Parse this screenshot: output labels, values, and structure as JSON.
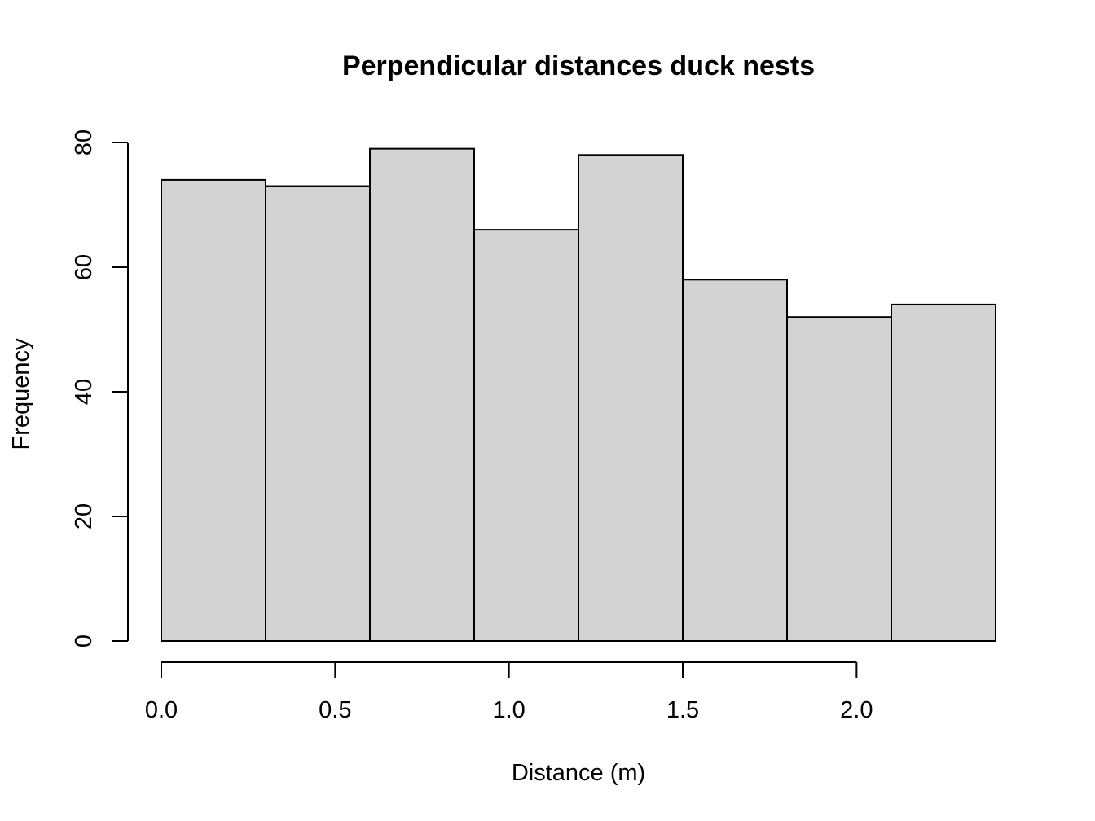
{
  "chart_data": {
    "type": "bar",
    "title": "Perpendicular distances duck nests",
    "xlabel": "Distance (m)",
    "ylabel": "Frequency",
    "bins": [
      {
        "from": 0.0,
        "to": 0.3,
        "value": 74
      },
      {
        "from": 0.3,
        "to": 0.6,
        "value": 73
      },
      {
        "from": 0.6,
        "to": 0.9,
        "value": 79
      },
      {
        "from": 0.9,
        "to": 1.2,
        "value": 66
      },
      {
        "from": 1.2,
        "to": 1.5,
        "value": 78
      },
      {
        "from": 1.5,
        "to": 1.8,
        "value": 58
      },
      {
        "from": 1.8,
        "to": 2.1,
        "value": 52
      },
      {
        "from": 2.1,
        "to": 2.4,
        "value": 54
      }
    ],
    "xlim": [
      0.0,
      2.4
    ],
    "ylim": [
      0,
      80
    ],
    "x_ticks": [
      {
        "value": 0.0,
        "label": "0.0"
      },
      {
        "value": 0.5,
        "label": "0.5"
      },
      {
        "value": 1.0,
        "label": "1.0"
      },
      {
        "value": 1.5,
        "label": "1.5"
      },
      {
        "value": 2.0,
        "label": "2.0"
      }
    ],
    "y_ticks": [
      {
        "value": 0,
        "label": "0"
      },
      {
        "value": 20,
        "label": "20"
      },
      {
        "value": 40,
        "label": "40"
      },
      {
        "value": 60,
        "label": "60"
      },
      {
        "value": 80,
        "label": "80"
      }
    ],
    "grid": false,
    "bar_color": "#d3d3d3",
    "edge_color": "#000000"
  }
}
